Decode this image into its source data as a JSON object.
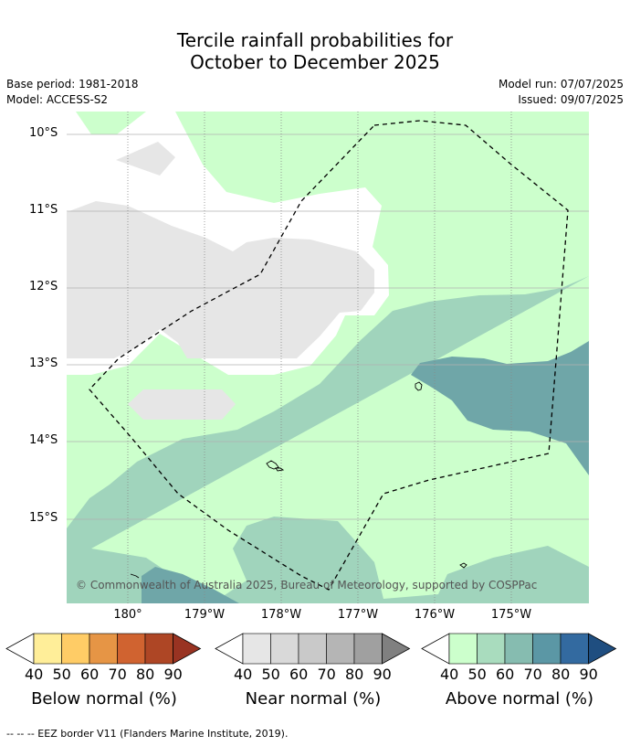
{
  "title": {
    "line1": "Tercile rainfall probabilities for",
    "line2": "October to December 2025"
  },
  "meta": {
    "base_period": "Base period: 1981-2018",
    "model": "Model: ACCESS-S2",
    "model_run": "Model run: 07/07/2025",
    "issued": "Issued: 09/07/2025"
  },
  "map": {
    "lat_labels": [
      "10°S",
      "11°S",
      "12°S",
      "13°S",
      "14°S",
      "15°S"
    ],
    "lon_labels": [
      "180°",
      "179°W",
      "178°W",
      "177°W",
      "176°W",
      "175°W"
    ],
    "copyright": "© Commonwealth of Australia 2025, Bureau of Meteorology, supported by COSPPac",
    "colors": {
      "near_normal_40": "#e6e6e6",
      "above_normal_40": "#ccffcc",
      "above_normal_50": "#a0d4bc",
      "above_normal_60": "#6fa6a8"
    }
  },
  "colorbars": [
    {
      "title": "Below normal (%)",
      "ticks": [
        "40",
        "50",
        "60",
        "70",
        "80",
        "90"
      ],
      "colors": [
        "#ffee99",
        "#ffcc66",
        "#e69545",
        "#d06330",
        "#ae4625",
        "#993322"
      ]
    },
    {
      "title": "Near normal (%)",
      "ticks": [
        "40",
        "50",
        "60",
        "70",
        "80",
        "90"
      ],
      "colors": [
        "#e6e6e6",
        "#d9d9d9",
        "#c9c9c9",
        "#b5b5b5",
        "#a0a0a0",
        "#808080"
      ]
    },
    {
      "title": "Above normal (%)",
      "ticks": [
        "40",
        "50",
        "60",
        "70",
        "80",
        "90"
      ],
      "colors": [
        "#ccffcc",
        "#a9dcbe",
        "#86bcb0",
        "#5b97a5",
        "#336aa0",
        "#1f4e80"
      ]
    }
  ],
  "footnote": "--  --  -- EEZ border V11 (Flanders Marine Institute, 2019)."
}
